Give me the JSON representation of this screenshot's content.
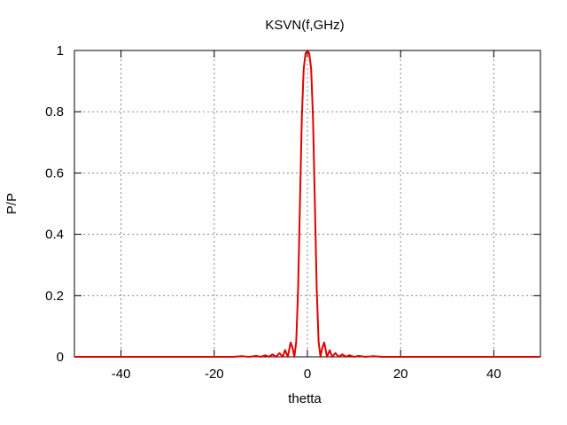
{
  "chart_data": {
    "type": "line",
    "title": "KSVN(f,GHz)",
    "xlabel": "thetta",
    "ylabel": "P/P",
    "xlim": [
      -50,
      50
    ],
    "ylim": [
      0,
      1
    ],
    "xticks": [
      -40,
      -20,
      0,
      20,
      40
    ],
    "yticks": [
      0,
      0.2,
      0.4,
      0.6,
      0.8,
      1
    ],
    "xtick_labels": [
      "-40",
      "-20",
      "0",
      "20",
      "40"
    ],
    "ytick_labels": [
      "0",
      "0.2",
      "0.4",
      "0.6",
      "0.8",
      "1"
    ],
    "grid": true,
    "series": [
      {
        "color": "#e00000",
        "x": [
          -50,
          -16,
          -14,
          -12.5,
          -11,
          -10,
          -9,
          -8.3,
          -7.5,
          -6.7,
          -6,
          -5.3,
          -4.8,
          -4.2,
          -3.6,
          -3.2,
          -2.8,
          -2.4,
          -2.0,
          -1.6,
          -1.2,
          -0.8,
          -0.4,
          0,
          0.4,
          0.8,
          1.2,
          1.6,
          2.0,
          2.4,
          2.8,
          3.2,
          3.6,
          4.2,
          4.8,
          5.3,
          6,
          6.7,
          7.5,
          8.3,
          9,
          10,
          11,
          12.5,
          14,
          16,
          50
        ],
        "y": [
          0,
          0,
          0.002,
          0,
          0.003,
          0,
          0.005,
          0,
          0.008,
          0,
          0.012,
          0,
          0.022,
          0,
          0.047,
          0.03,
          0,
          0.05,
          0.22,
          0.5,
          0.78,
          0.94,
          0.99,
          1,
          0.99,
          0.94,
          0.78,
          0.5,
          0.22,
          0.05,
          0,
          0.03,
          0.047,
          0,
          0.022,
          0,
          0.012,
          0,
          0.008,
          0,
          0.005,
          0,
          0.003,
          0,
          0.002,
          0,
          0
        ]
      }
    ]
  }
}
